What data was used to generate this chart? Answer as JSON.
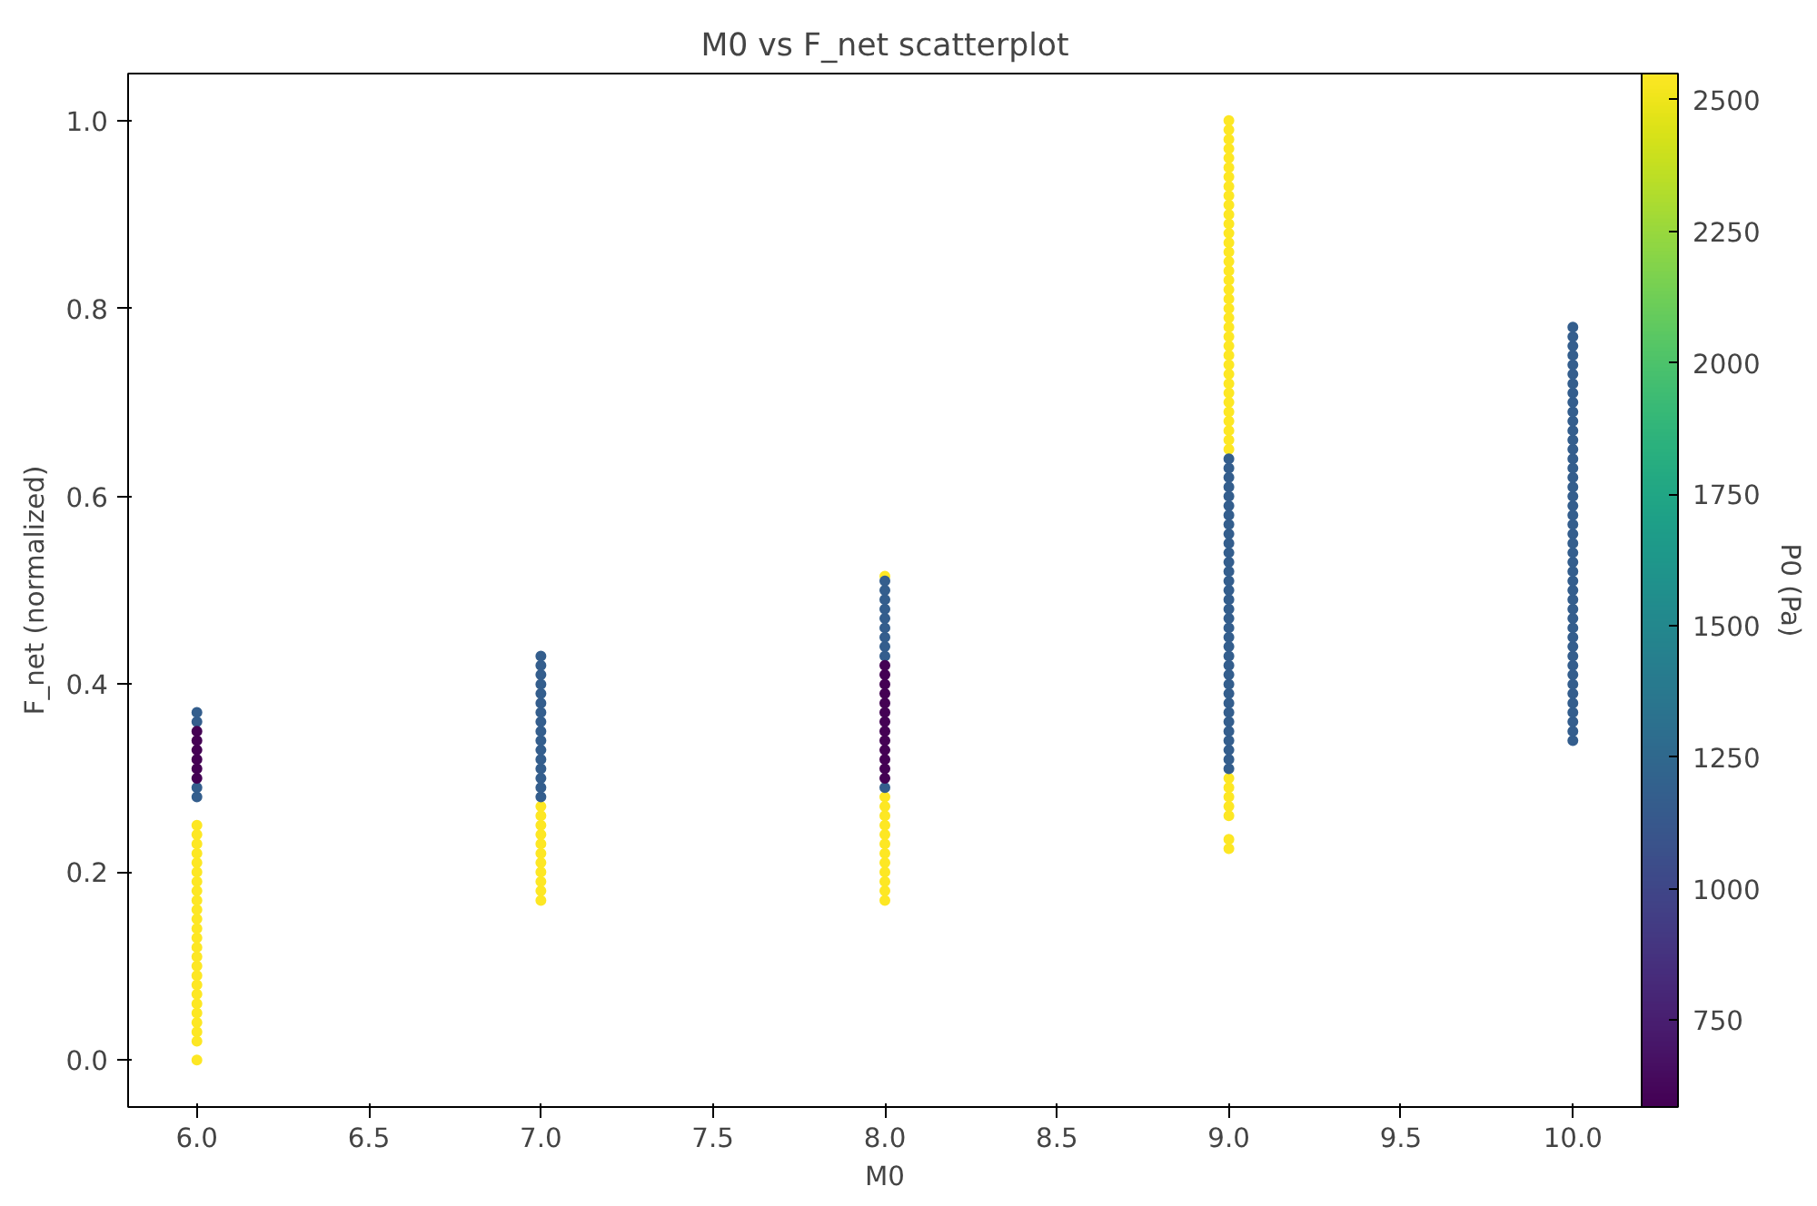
{
  "chart_data": {
    "type": "scatter",
    "title": "M0 vs F_net scatterplot",
    "xlabel": "M0",
    "ylabel": "F_net (normalized)",
    "clabel": "P0 (Pa)",
    "series": [
      {
        "x": [
          6,
          6,
          6,
          6,
          6,
          6,
          6,
          6,
          6,
          6,
          6,
          6,
          6,
          6,
          6,
          6,
          6,
          6,
          6,
          6,
          6,
          6,
          6,
          6,
          6
        ],
        "values": [
          0.0,
          0.02,
          0.03,
          0.04,
          0.05,
          0.06,
          0.07,
          0.08,
          0.09,
          0.1,
          0.11,
          0.12,
          0.13,
          0.14,
          0.15,
          0.16,
          0.17,
          0.18,
          0.19,
          0.2,
          0.21,
          0.22,
          0.23,
          0.24,
          0.25
        ],
        "cvalues": [
          2550,
          2550,
          2550,
          2550,
          2550,
          2550,
          2550,
          2550,
          2550,
          2550,
          2550,
          2550,
          2550,
          2550,
          2550,
          2550,
          2550,
          2550,
          2550,
          2550,
          2550,
          2550,
          2550,
          2550,
          2550
        ]
      },
      {
        "x": [
          6,
          6,
          6,
          6
        ],
        "values": [
          0.28,
          0.29,
          0.36,
          0.37
        ],
        "cvalues": [
          1175,
          1175,
          1175,
          1175
        ]
      },
      {
        "x": [
          6,
          6,
          6,
          6,
          6,
          6
        ],
        "values": [
          0.3,
          0.31,
          0.32,
          0.33,
          0.34,
          0.35
        ],
        "cvalues": [
          585,
          585,
          585,
          585,
          585,
          585
        ]
      },
      {
        "x": [
          7,
          7,
          7,
          7,
          7,
          7,
          7,
          7,
          7,
          7,
          7
        ],
        "values": [
          0.17,
          0.18,
          0.19,
          0.2,
          0.21,
          0.22,
          0.23,
          0.24,
          0.25,
          0.26,
          0.27
        ],
        "cvalues": [
          2550,
          2550,
          2550,
          2550,
          2550,
          2550,
          2550,
          2550,
          2550,
          2550,
          2550
        ]
      },
      {
        "x": [
          7,
          7,
          7,
          7,
          7,
          7,
          7,
          7,
          7,
          7,
          7,
          7,
          7,
          7,
          7,
          7
        ],
        "values": [
          0.28,
          0.29,
          0.3,
          0.31,
          0.32,
          0.33,
          0.34,
          0.35,
          0.36,
          0.37,
          0.38,
          0.39,
          0.4,
          0.41,
          0.42,
          0.43
        ],
        "cvalues": [
          1175,
          1175,
          1175,
          1175,
          1175,
          1175,
          1175,
          1175,
          1175,
          1175,
          1175,
          1175,
          1175,
          1175,
          1175,
          1175
        ]
      },
      {
        "x": [
          8,
          8,
          8,
          8,
          8,
          8,
          8,
          8,
          8,
          8,
          8,
          8,
          8
        ],
        "values": [
          0.17,
          0.18,
          0.19,
          0.2,
          0.21,
          0.22,
          0.23,
          0.24,
          0.25,
          0.26,
          0.27,
          0.28,
          0.515
        ],
        "cvalues": [
          2550,
          2550,
          2550,
          2550,
          2550,
          2550,
          2550,
          2550,
          2550,
          2550,
          2550,
          2550,
          2550
        ]
      },
      {
        "x": [
          8,
          8,
          8,
          8,
          8,
          8,
          8,
          8,
          8,
          8
        ],
        "values": [
          0.29,
          0.43,
          0.44,
          0.45,
          0.46,
          0.47,
          0.48,
          0.49,
          0.5,
          0.51
        ],
        "cvalues": [
          1175,
          1175,
          1175,
          1175,
          1175,
          1175,
          1175,
          1175,
          1175,
          1175
        ]
      },
      {
        "x": [
          8,
          8,
          8,
          8,
          8,
          8,
          8,
          8,
          8,
          8,
          8,
          8,
          8
        ],
        "values": [
          0.3,
          0.31,
          0.32,
          0.33,
          0.34,
          0.35,
          0.36,
          0.37,
          0.38,
          0.39,
          0.4,
          0.41,
          0.42
        ],
        "cvalues": [
          585,
          585,
          585,
          585,
          585,
          585,
          585,
          585,
          585,
          585,
          585,
          585,
          585
        ]
      },
      {
        "x": [
          9,
          9,
          9,
          9,
          9,
          9,
          9
        ],
        "values": [
          0.225,
          0.235,
          0.26,
          0.27,
          0.28,
          0.29,
          0.3
        ],
        "cvalues": [
          2550,
          2550,
          2550,
          2550,
          2550,
          2550,
          2550
        ]
      },
      {
        "x": [
          9,
          9,
          9,
          9,
          9,
          9,
          9,
          9,
          9,
          9,
          9,
          9,
          9,
          9,
          9,
          9,
          9,
          9,
          9,
          9,
          9,
          9,
          9,
          9,
          9,
          9,
          9,
          9,
          9,
          9,
          9,
          9,
          9,
          9,
          9,
          9
        ],
        "values": [
          0.65,
          0.66,
          0.67,
          0.68,
          0.69,
          0.7,
          0.71,
          0.72,
          0.73,
          0.74,
          0.75,
          0.76,
          0.77,
          0.78,
          0.79,
          0.8,
          0.81,
          0.82,
          0.83,
          0.84,
          0.85,
          0.86,
          0.87,
          0.88,
          0.89,
          0.9,
          0.91,
          0.92,
          0.93,
          0.94,
          0.95,
          0.96,
          0.97,
          0.98,
          0.99,
          1.0
        ],
        "cvalues": [
          2550,
          2550,
          2550,
          2550,
          2550,
          2550,
          2550,
          2550,
          2550,
          2550,
          2550,
          2550,
          2550,
          2550,
          2550,
          2550,
          2550,
          2550,
          2550,
          2550,
          2550,
          2550,
          2550,
          2550,
          2550,
          2550,
          2550,
          2550,
          2550,
          2550,
          2550,
          2550,
          2550,
          2550,
          2550,
          2550
        ]
      },
      {
        "x": [
          9,
          9,
          9,
          9,
          9,
          9,
          9,
          9,
          9,
          9,
          9,
          9,
          9,
          9,
          9,
          9,
          9,
          9,
          9,
          9,
          9,
          9,
          9,
          9,
          9,
          9,
          9,
          9,
          9,
          9,
          9,
          9,
          9,
          9
        ],
        "values": [
          0.31,
          0.32,
          0.33,
          0.34,
          0.35,
          0.36,
          0.37,
          0.38,
          0.39,
          0.4,
          0.41,
          0.42,
          0.43,
          0.44,
          0.45,
          0.46,
          0.47,
          0.48,
          0.49,
          0.5,
          0.51,
          0.52,
          0.53,
          0.54,
          0.55,
          0.56,
          0.57,
          0.58,
          0.59,
          0.6,
          0.61,
          0.62,
          0.63,
          0.64
        ],
        "cvalues": [
          1175,
          1175,
          1175,
          1175,
          1175,
          1175,
          1175,
          1175,
          1175,
          1175,
          1175,
          1175,
          1175,
          1175,
          1175,
          1175,
          1175,
          1175,
          1175,
          1175,
          1175,
          1175,
          1175,
          1175,
          1175,
          1175,
          1175,
          1175,
          1175,
          1175,
          1175,
          1175,
          1175,
          1175
        ]
      },
      {
        "x": [
          10,
          10,
          10,
          10,
          10,
          10,
          10,
          10,
          10,
          10,
          10,
          10,
          10,
          10,
          10,
          10,
          10,
          10,
          10,
          10,
          10,
          10,
          10,
          10,
          10,
          10,
          10,
          10,
          10,
          10,
          10,
          10,
          10,
          10,
          10,
          10,
          10,
          10,
          10,
          10,
          10,
          10,
          10,
          10,
          10
        ],
        "values": [
          0.34,
          0.35,
          0.36,
          0.37,
          0.38,
          0.39,
          0.4,
          0.41,
          0.42,
          0.43,
          0.44,
          0.45,
          0.46,
          0.47,
          0.48,
          0.49,
          0.5,
          0.51,
          0.52,
          0.53,
          0.54,
          0.55,
          0.56,
          0.57,
          0.58,
          0.59,
          0.6,
          0.61,
          0.62,
          0.63,
          0.64,
          0.65,
          0.66,
          0.67,
          0.68,
          0.69,
          0.7,
          0.71,
          0.72,
          0.73,
          0.74,
          0.75,
          0.76,
          0.77,
          0.78
        ],
        "cvalues": [
          1175,
          1175,
          1175,
          1175,
          1175,
          1175,
          1175,
          1175,
          1175,
          1175,
          1175,
          1175,
          1175,
          1175,
          1175,
          1175,
          1175,
          1175,
          1175,
          1175,
          1175,
          1175,
          1175,
          1175,
          1175,
          1175,
          1175,
          1175,
          1175,
          1175,
          1175,
          1175,
          1175,
          1175,
          1175,
          1175,
          1175,
          1175,
          1175,
          1175,
          1175,
          1175,
          1175,
          1175,
          1175
        ]
      }
    ],
    "xlim": [
      5.8,
      10.2
    ],
    "ylim": [
      -0.05,
      1.05
    ],
    "xticks": [
      {
        "value": 6,
        "label": "6.0"
      },
      {
        "value": 6.5,
        "label": "6.5"
      },
      {
        "value": 7,
        "label": "7.0"
      },
      {
        "value": 7.5,
        "label": "7.5"
      },
      {
        "value": 8,
        "label": "8.0"
      },
      {
        "value": 8.5,
        "label": "8.5"
      },
      {
        "value": 9,
        "label": "9.0"
      },
      {
        "value": 9.5,
        "label": "9.5"
      },
      {
        "value": 10,
        "label": "10.0"
      }
    ],
    "yticks": [
      {
        "value": 0,
        "label": "0.0"
      },
      {
        "value": 0.2,
        "label": "0.2"
      },
      {
        "value": 0.4,
        "label": "0.4"
      },
      {
        "value": 0.6,
        "label": "0.6"
      },
      {
        "value": 0.8,
        "label": "0.8"
      },
      {
        "value": 1,
        "label": "1.0"
      }
    ],
    "clim": [
      585,
      2550
    ],
    "cticks": [
      750,
      1000,
      1250,
      1500,
      1750,
      2000,
      2250,
      2500
    ],
    "grid": false,
    "marker": "circle"
  }
}
